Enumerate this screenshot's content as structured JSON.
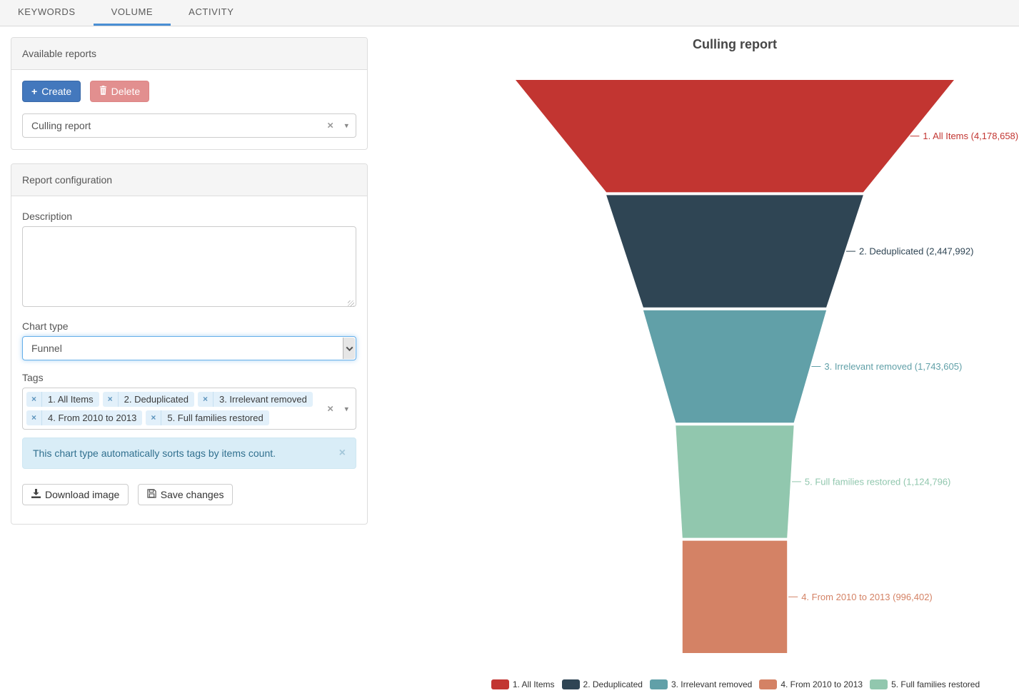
{
  "tabs": {
    "items": [
      {
        "label": "KEYWORDS",
        "active": false
      },
      {
        "label": "VOLUME",
        "active": true
      },
      {
        "label": "ACTIVITY",
        "active": false
      }
    ]
  },
  "available_reports": {
    "title": "Available reports",
    "create_label": "Create",
    "delete_label": "Delete",
    "report_select_value": "Culling report"
  },
  "report_config": {
    "title": "Report configuration",
    "description_label": "Description",
    "description_value": "",
    "chart_type_label": "Chart type",
    "chart_type_value": "Funnel",
    "tags_label": "Tags",
    "tags": [
      "1. All Items",
      "2. Deduplicated",
      "3. Irrelevant removed",
      "4. From 2010 to 2013",
      "5. Full families restored"
    ],
    "alert_text": "This chart type automatically sorts tags by items count.",
    "download_label": "Download image",
    "save_label": "Save changes"
  },
  "chart_data": {
    "type": "funnel",
    "title": "Culling report",
    "sort": "descending",
    "legend_position": "bottom",
    "items": [
      {
        "name": "1. All Items",
        "value": 4178658,
        "label": "1. All Items (4,178,658)",
        "color": "#c23531"
      },
      {
        "name": "2. Deduplicated",
        "value": 2447992,
        "label": "2. Deduplicated (2,447,992)",
        "color": "#2f4554"
      },
      {
        "name": "3. Irrelevant removed",
        "value": 1743605,
        "label": "3. Irrelevant removed (1,743,605)",
        "color": "#61a0a8"
      },
      {
        "name": "4. From 2010 to 2013",
        "value": 996402,
        "label": "4. From 2010 to 2013 (996,402)",
        "color": "#d48265"
      },
      {
        "name": "5. Full families restored",
        "value": 1124796,
        "label": "5. Full families restored (1,124,796)",
        "color": "#91c7ae"
      }
    ]
  },
  "colors": {
    "accent": "#4a8fd4",
    "primary_button": "#4378bd",
    "danger_button": "#e28f8f",
    "alert_bg": "#d9edf7",
    "alert_text": "#31708f"
  }
}
